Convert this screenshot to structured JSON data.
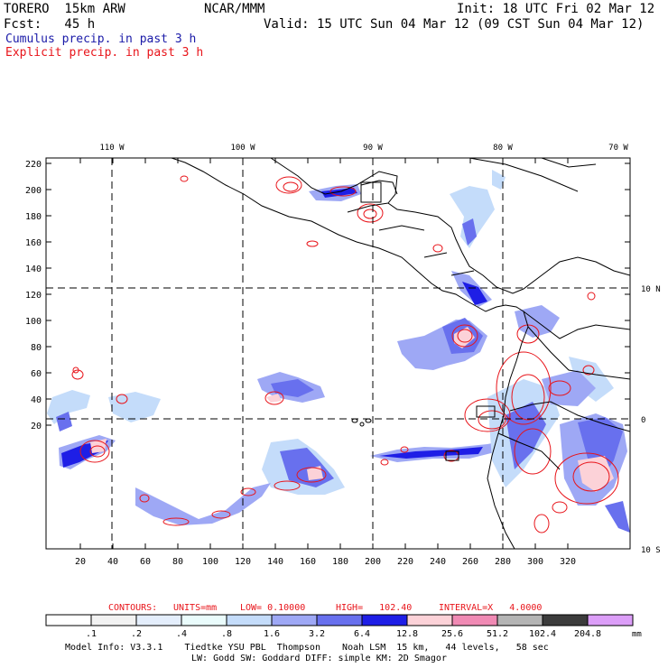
{
  "header": {
    "model": "TORERO  15km ARW",
    "center": "NCAR/MMM",
    "init": "Init: 18 UTC Fri 02 Mar 12",
    "forecast": "Fcst:   45 h",
    "valid": "Valid: 15 UTC Sun 04 Mar 12 (09 CST Sun 04 Mar 12)"
  },
  "legend_lines": {
    "cumulus": "Cumulus precip. in past 3 h",
    "explicit": "Explicit precip. in past 3 h",
    "cumulus_color": "#1a1aa8",
    "explicit_color": "#e8141a"
  },
  "axes": {
    "lon_labels": [
      "110 W",
      "100 W",
      "90 W",
      "80 W",
      "70 W"
    ],
    "lat_labels": [
      "10 N",
      "0",
      "10 S"
    ],
    "y_ticks": [
      "220",
      "200",
      "180",
      "160",
      "140",
      "120",
      "100",
      "80",
      "60",
      "40",
      "20"
    ],
    "x_ticks": [
      "20",
      "40",
      "60",
      "80",
      "100",
      "120",
      "140",
      "160",
      "180",
      "200",
      "220",
      "240",
      "260",
      "280",
      "300",
      "320"
    ]
  },
  "contours": {
    "label": "CONTOURS:",
    "units": "UNITS=mm",
    "low": "LOW= 0.10000",
    "high": "HIGH=   102.40",
    "interval": "INTERVAL=X   4.0000"
  },
  "colorbar": {
    "labels": [
      ".1",
      ".2",
      ".4",
      ".8",
      "1.6",
      "3.2",
      "6.4",
      "12.8",
      "25.6",
      "51.2",
      "102.4",
      "204.8"
    ],
    "unit": "mm",
    "colors": [
      "#ffffff",
      "#f2f2f2",
      "#e4eefc",
      "#eafcfc",
      "#c4dcfa",
      "#9ea8f5",
      "#6870ee",
      "#1e1ee6",
      "#fcd2d8",
      "#f08ab4",
      "#b4b4b4",
      "#3c3c3c",
      "#dc9ef8"
    ]
  },
  "footer": {
    "line1": "Model Info: V3.3.1    Tiedtke YSU PBL  Thompson    Noah LSM  15 km,   44 levels,   58 sec",
    "line2": "LW: Godd SW: Goddard DIFF: simple KM: 2D Smagor"
  }
}
